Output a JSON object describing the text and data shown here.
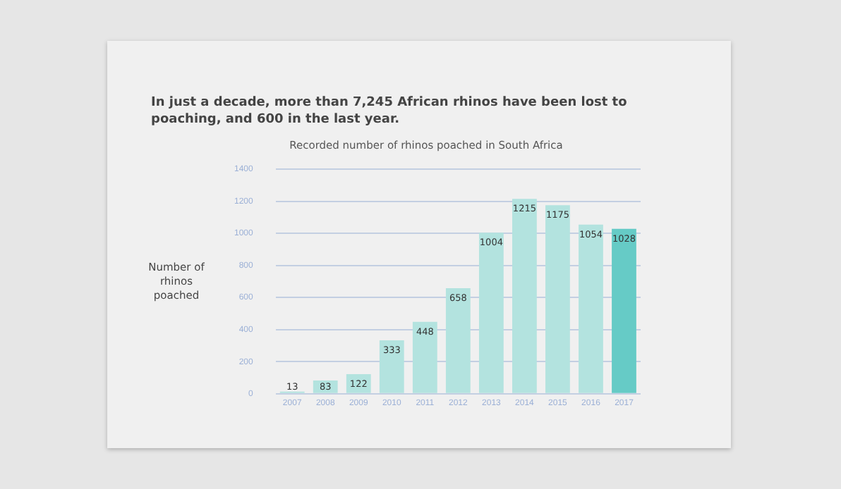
{
  "chart_data": {
    "type": "bar",
    "title": "In just a decade, more than 7,245 African rhinos have been lost to poaching, and 600 in the last year.",
    "subtitle": "Recorded number of rhinos poached in South Africa",
    "ylabel": "Number of rhinos poached",
    "categories": [
      "2007",
      "2008",
      "2009",
      "2010",
      "2011",
      "2012",
      "2013",
      "2014",
      "2015",
      "2016",
      "2017"
    ],
    "values": [
      13,
      83,
      122,
      333,
      448,
      658,
      1004,
      1215,
      1175,
      1054,
      1028
    ],
    "colors": [
      "#b3e3df",
      "#b3e3df",
      "#b3e3df",
      "#b3e3df",
      "#b3e3df",
      "#b3e3df",
      "#b3e3df",
      "#b3e3df",
      "#b3e3df",
      "#b3e3df",
      "#66cbc6"
    ],
    "ylim": [
      0,
      1400
    ],
    "yticks": [
      0,
      200,
      400,
      600,
      800,
      1000,
      1200,
      1400
    ],
    "grid": "y",
    "data_labels": true,
    "legend": false
  }
}
